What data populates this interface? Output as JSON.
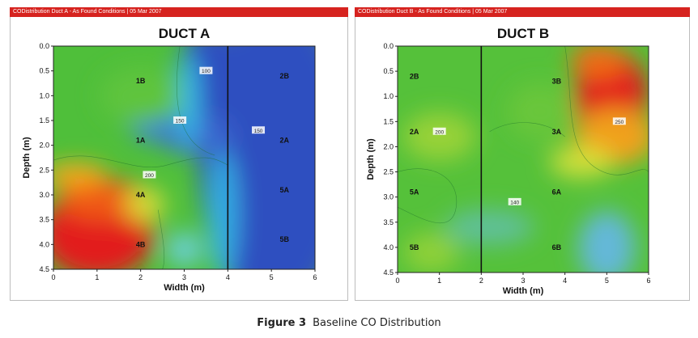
{
  "panels": [
    {
      "header": "CODistribution Duct A - As Found Conditions | 05 Mar 2007"
    },
    {
      "header": "CODistribution Duct B - As Found Conditions | 05 Mar 2007"
    }
  ],
  "caption": {
    "label": "Figure 3",
    "text": "Baseline CO Distribution"
  },
  "colors": {
    "header_bar": "#d6231f",
    "low": "#2a48b8",
    "mid": "#4fbf3a",
    "high": "#e21a1a"
  },
  "chart_data": [
    {
      "type": "heatmap",
      "title": "DUCT A",
      "xlabel": "Width (m)",
      "ylabel": "Depth (m)",
      "xlim": [
        0,
        6
      ],
      "ylim": [
        4.5,
        0.0
      ],
      "xticks": [
        "0",
        "1",
        "2",
        "3",
        "4",
        "5",
        "6"
      ],
      "yticks": [
        "0.0",
        "0.5",
        "1.0",
        "1.5",
        "2.0",
        "2.5",
        "3.0",
        "3.5",
        "4.0",
        "4.5"
      ],
      "divider_x": 4,
      "grid": false,
      "zones": [
        {
          "label": "1B",
          "x": 2.0,
          "y": 0.7
        },
        {
          "label": "1A",
          "x": 2.0,
          "y": 1.9
        },
        {
          "label": "4A",
          "x": 2.0,
          "y": 3.0
        },
        {
          "label": "4B",
          "x": 2.0,
          "y": 4.0
        },
        {
          "label": "2B",
          "x": 5.3,
          "y": 0.6
        },
        {
          "label": "2A",
          "x": 5.3,
          "y": 1.9
        },
        {
          "label": "5A",
          "x": 5.3,
          "y": 2.9
        },
        {
          "label": "5B",
          "x": 5.3,
          "y": 3.9
        }
      ],
      "contour_labels": [
        {
          "text": "100",
          "x": 3.5,
          "y": 0.5
        },
        {
          "text": "150",
          "x": 2.9,
          "y": 1.5
        },
        {
          "text": "200",
          "x": 2.2,
          "y": 2.6
        },
        {
          "text": "150",
          "x": 4.7,
          "y": 1.7
        }
      ]
    },
    {
      "type": "heatmap",
      "title": "DUCT B",
      "xlabel": "Width (m)",
      "ylabel": "Depth (m)",
      "xlim": [
        0,
        6
      ],
      "ylim": [
        4.5,
        0.0
      ],
      "xticks": [
        "0",
        "1",
        "2",
        "3",
        "4",
        "5",
        "6"
      ],
      "yticks": [
        "0.0",
        "0.5",
        "1.0",
        "1.5",
        "2.0",
        "2.5",
        "3.0",
        "3.5",
        "4.0",
        "4.5"
      ],
      "divider_x": 2,
      "grid": false,
      "zones": [
        {
          "label": "2B",
          "x": 0.4,
          "y": 0.6
        },
        {
          "label": "2A",
          "x": 0.4,
          "y": 1.7
        },
        {
          "label": "5A",
          "x": 0.4,
          "y": 2.9
        },
        {
          "label": "5B",
          "x": 0.4,
          "y": 4.0
        },
        {
          "label": "3B",
          "x": 3.8,
          "y": 0.7
        },
        {
          "label": "3A",
          "x": 3.8,
          "y": 1.7
        },
        {
          "label": "6A",
          "x": 3.8,
          "y": 2.9
        },
        {
          "label": "6B",
          "x": 3.8,
          "y": 4.0
        }
      ],
      "contour_labels": [
        {
          "text": "200",
          "x": 1.0,
          "y": 1.7
        },
        {
          "text": "140",
          "x": 2.8,
          "y": 3.1
        },
        {
          "text": "250",
          "x": 5.3,
          "y": 1.5
        }
      ]
    }
  ]
}
